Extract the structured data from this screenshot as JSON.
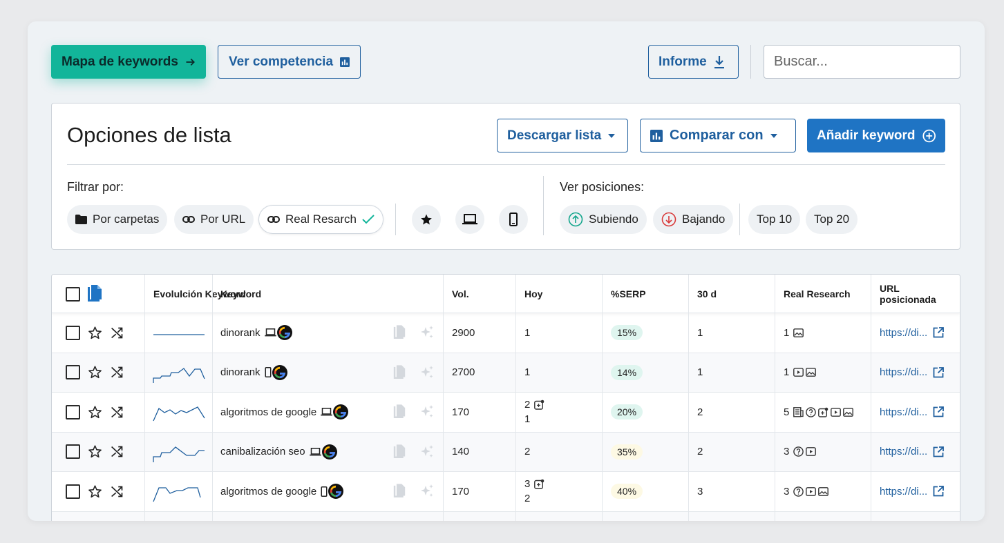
{
  "topbar": {
    "map_label": "Mapa de keywords",
    "competition_label": "Ver competencia",
    "report_label": "Informe",
    "search_placeholder": "Buscar..."
  },
  "panel": {
    "title": "Opciones de lista",
    "download_label": "Descargar lista",
    "compare_label": "Comparar con",
    "add_label": "Añadir keyword",
    "filter_label": "Filtrar por:",
    "positions_label": "Ver posiciones:",
    "filters": [
      "Por carpetas",
      "Por URL",
      "Real Resarch"
    ],
    "positions": [
      "Subiendo",
      "Bajando",
      "Top 10",
      "Top 20"
    ]
  },
  "table": {
    "headers": {
      "evolution": "Evolulción Keyword",
      "keyword": "Keyword",
      "vol": "Vol.",
      "today": "Hoy",
      "serp": "%SERP",
      "d30": "30 d",
      "real": "Real Research",
      "url": "URL posicionada"
    },
    "rows": [
      {
        "keyword": "dinorank",
        "device": "desktop",
        "vol": "2900",
        "today": "1",
        "today2": "",
        "serp": "15%",
        "serp_color": "#dff5ef",
        "d30": "1",
        "real": "1",
        "url": "https://di..."
      },
      {
        "keyword": "dinorank",
        "device": "mobile",
        "vol": "2700",
        "today": "1",
        "today2": "",
        "serp": "14%",
        "serp_color": "#dff5ef",
        "d30": "1",
        "real": "1",
        "url": "https://di..."
      },
      {
        "keyword": "algoritmos de google",
        "device": "desktop",
        "vol": "170",
        "today": "2",
        "today2": "1",
        "serp": "20%",
        "serp_color": "#dff5ef",
        "d30": "2",
        "real": "5",
        "url": "https://di..."
      },
      {
        "keyword": "canibalización seo",
        "device": "desktop",
        "vol": "140",
        "today": "2",
        "today2": "",
        "serp": "35%",
        "serp_color": "#fdf9e4",
        "d30": "2",
        "real": "3",
        "url": "https://di..."
      },
      {
        "keyword": "algoritmos de google",
        "device": "mobile",
        "vol": "170",
        "today": "3",
        "today2": "2",
        "serp": "40%",
        "serp_color": "#fdf9e4",
        "d30": "3",
        "real": "3",
        "url": "https://di..."
      }
    ]
  },
  "colors": {
    "accent": "#12b59a",
    "primary": "#1f74c4",
    "outline": "#1f5f9e"
  }
}
